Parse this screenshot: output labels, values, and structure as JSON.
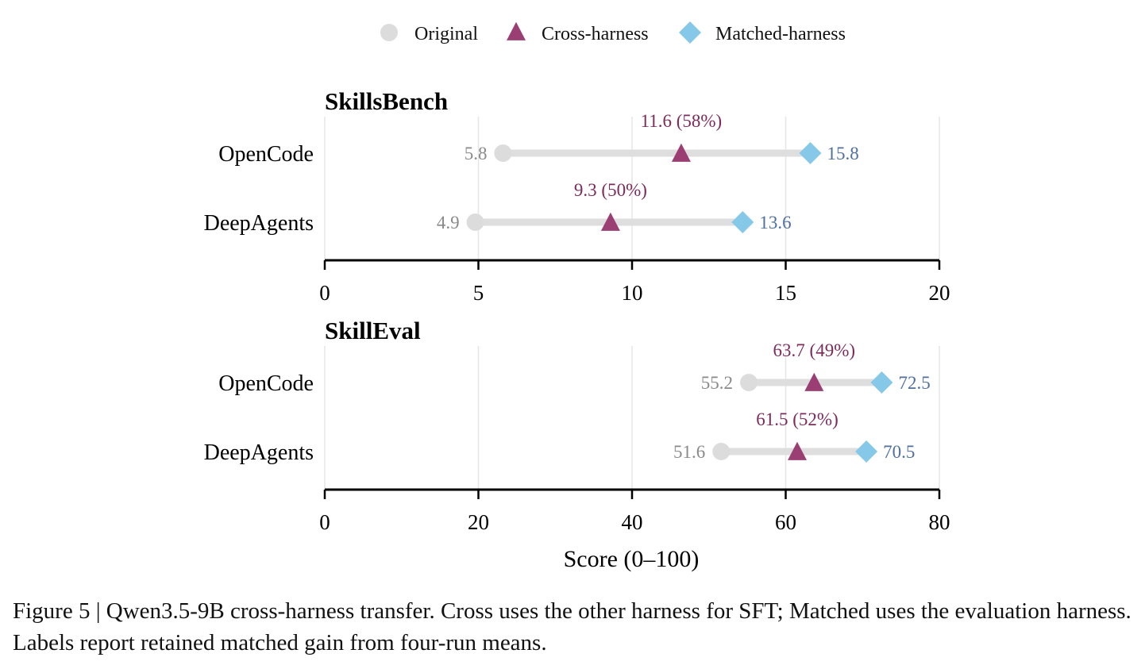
{
  "legend": [
    {
      "label": "Original",
      "shape": "circle",
      "color": "#dcdcdc"
    },
    {
      "label": "Cross-harness",
      "shape": "triangle",
      "color": "#9b3e74"
    },
    {
      "label": "Matched-harness",
      "shape": "diamond",
      "color": "#86c8e8"
    }
  ],
  "xlabel": "Score (0–100)",
  "caption": "Figure 5 | Qwen3.5-9B cross-harness transfer. Cross uses the other harness for SFT; Matched uses the evaluation harness. Labels report retained matched gain from four-run means.",
  "colors": {
    "original": "#dcdcdc",
    "cross": "#9b3e74",
    "matched": "#86c8e8",
    "original_text": "#8a8a8a",
    "cross_text": "#7c2b5b",
    "matched_text": "#4f6f9f",
    "line": "#dedede",
    "grid": "#e6e6e6"
  },
  "chart_data": [
    {
      "type": "dumbbell",
      "title": "SkillsBench",
      "xlabel": "",
      "xlim": [
        0,
        20
      ],
      "xticks": [
        "0",
        "5",
        "10",
        "15",
        "20"
      ],
      "xtick_values": [
        0,
        5,
        10,
        15,
        20
      ],
      "grid": true,
      "categories": [
        "OpenCode",
        "DeepAgents"
      ],
      "series": [
        {
          "name": "Original",
          "values": [
            5.8,
            4.9
          ],
          "labels": [
            "5.8",
            "4.9"
          ]
        },
        {
          "name": "Cross-harness",
          "values": [
            11.6,
            9.3
          ],
          "labels": [
            "11.6 (58%)",
            "9.3 (50%)"
          ]
        },
        {
          "name": "Matched-harness",
          "values": [
            15.8,
            13.6
          ],
          "labels": [
            "15.8",
            "13.6"
          ]
        }
      ]
    },
    {
      "type": "dumbbell",
      "title": "SkillEval",
      "xlabel": "Score (0–100)",
      "xlim": [
        0,
        80
      ],
      "xticks": [
        "0",
        "20",
        "40",
        "60",
        "80"
      ],
      "xtick_values": [
        0,
        20,
        40,
        60,
        80
      ],
      "grid": true,
      "categories": [
        "OpenCode",
        "DeepAgents"
      ],
      "series": [
        {
          "name": "Original",
          "values": [
            55.2,
            51.6
          ],
          "labels": [
            "55.2",
            "51.6"
          ]
        },
        {
          "name": "Cross-harness",
          "values": [
            63.7,
            61.5
          ],
          "labels": [
            "63.7 (49%)",
            "61.5 (52%)"
          ]
        },
        {
          "name": "Matched-harness",
          "values": [
            72.5,
            70.5
          ],
          "labels": [
            "72.5",
            "70.5"
          ]
        }
      ]
    }
  ]
}
